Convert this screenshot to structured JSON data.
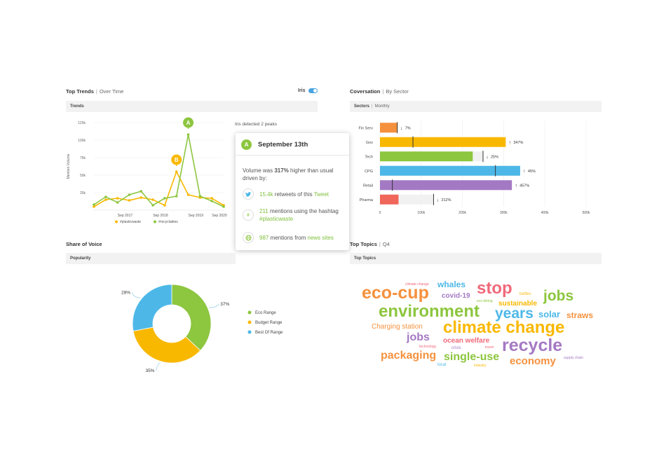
{
  "top_trends": {
    "title": "Top Trends",
    "subtitle": "Over Time",
    "iris_label": "Iris",
    "panel_label": "Trends",
    "detected_text": "Iris detected 2 peaks",
    "y_axis_label": "Mention Volume",
    "y_ticks": [
      "125k",
      "100k",
      "75k",
      "50k",
      "25k"
    ],
    "x_ticks": [
      "Sep 2017",
      "Sep 2018",
      "Sep 2019",
      "Sep 2020"
    ],
    "legend": [
      "#plasticwaste",
      "#recyclables"
    ],
    "peak_a": "A",
    "peak_b": "B"
  },
  "popup": {
    "badge": "A",
    "date": "September 13th",
    "summary_pre": "Volume was ",
    "summary_pct": "317%",
    "summary_post": " higher than usual driven by:",
    "r1_value": "15.4k",
    "r1_mid": " retweets of this ",
    "r1_link": "Tweet",
    "r2_value": "211",
    "r2_mid": " mentions using the hashtag ",
    "r2_link": "#plasticwaste",
    "r3_value": "987",
    "r3_mid": " mentions from ",
    "r3_link": "news sites"
  },
  "conversation": {
    "title": "Coversation",
    "subtitle": "By Sector",
    "panel_label": "Sectors",
    "panel_sub": "Monthly",
    "sectors": [
      "Fin Serv",
      "Gov",
      "Tech",
      "CPG",
      "Retail",
      "Pharma"
    ],
    "changes": [
      "7%",
      "347%",
      "25%",
      "45%",
      "457%",
      "212%"
    ],
    "directions": [
      "down",
      "up",
      "down",
      "up",
      "up",
      "down"
    ],
    "x_ticks": [
      "0",
      "100k",
      "200k",
      "300k",
      "400k",
      "500k"
    ]
  },
  "share_of_voice": {
    "title": "Share of Voice",
    "panel_label": "Popularity",
    "legend": [
      "Eco Range",
      "Budget Range",
      "Best Of Range"
    ],
    "pct_labels": [
      "37%",
      "35%",
      "28%"
    ]
  },
  "top_topics": {
    "title": "Top Topics",
    "subtitle": "Q4",
    "panel_label": "Top Topics",
    "words": [
      "climate change",
      "whales",
      "eco-cup",
      "stop",
      "covid-19",
      "turtles",
      "jobs",
      "eco biking",
      "sustainable",
      "environment",
      "years",
      "solar",
      "straws",
      "Charging station",
      "climate change",
      "jobs",
      "ocean welfare",
      "recycle",
      "technology",
      "crisis",
      "travel",
      "packaging",
      "single-use",
      "economy",
      "supply chain",
      "local",
      "industry"
    ]
  },
  "colors": {
    "green": "#8dc63f",
    "yellow": "#f9b800",
    "blue": "#4db8e8",
    "orange": "#f5913e",
    "purple": "#a479c4",
    "red": "#f0665a",
    "pink": "#f0697a"
  },
  "chart_data": [
    {
      "type": "line",
      "x": [
        "2016-09",
        "2017-01",
        "2017-05",
        "2017-09",
        "2018-01",
        "2018-05",
        "2018-09",
        "2019-01",
        "2019-05",
        "2019-09",
        "2020-01",
        "2020-05"
      ],
      "series": [
        {
          "name": "#plasticwaste",
          "values": [
            5,
            15,
            17,
            14,
            18,
            15,
            7,
            55,
            22,
            18,
            17,
            7
          ]
        },
        {
          "name": "#recyclables",
          "values": [
            8,
            19,
            11,
            22,
            27,
            7,
            17,
            20,
            108,
            20,
            13,
            5
          ]
        }
      ],
      "xlabel": "",
      "ylabel": "Mention Volume",
      "ylim": [
        0,
        125
      ]
    },
    {
      "type": "bar",
      "orientation": "horizontal",
      "categories": [
        "Fin Serv",
        "Gov",
        "Tech",
        "CPG",
        "Retail",
        "Pharma"
      ],
      "values": [
        42,
        305,
        225,
        340,
        320,
        45
      ],
      "usual": [
        42,
        80,
        250,
        280,
        30,
        130
      ],
      "labels": [
        "7%",
        "347%",
        "25%",
        "45%",
        "457%",
        "212%"
      ],
      "xlim": [
        0,
        500
      ]
    },
    {
      "type": "pie",
      "donut": true,
      "categories": [
        "Eco Range",
        "Budget Range",
        "Best Of Range"
      ],
      "values": [
        37,
        35,
        28
      ]
    }
  ]
}
